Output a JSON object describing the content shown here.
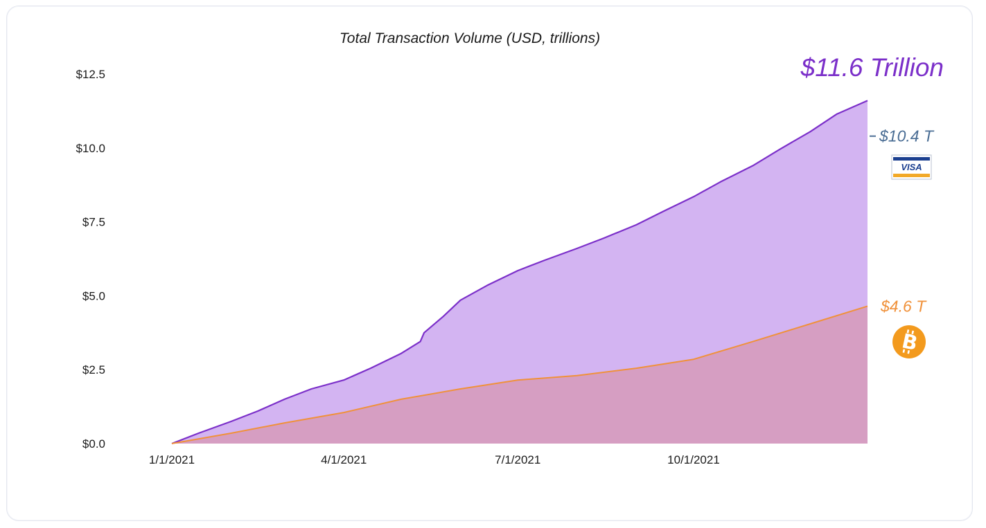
{
  "chart_data": {
    "type": "area",
    "title": "Total Transaction Volume (USD, trillions)",
    "xlabel": "",
    "ylabel": "",
    "ylim": [
      0,
      12.5
    ],
    "y_ticks": [
      "$0.0",
      "$2.5",
      "$5.0",
      "$7.5",
      "$10.0",
      "$12.5"
    ],
    "y_tick_values": [
      0,
      2.5,
      5.0,
      7.5,
      10.0,
      12.5
    ],
    "x_ticks": [
      "1/1/2021",
      "4/1/2021",
      "7/1/2021",
      "10/1/2021"
    ],
    "x_tick_dates": [
      "2021-01-01",
      "2021-04-01",
      "2021-07-01",
      "2021-10-01"
    ],
    "xlim": [
      "2021-01-01",
      "2021-12-31"
    ],
    "grid": false,
    "legend": "none",
    "headline": "$11.6 Trillion",
    "series": [
      {
        "color": "#7b2fc9",
        "fill": "#d3b4f2",
        "end_label": "$11.6 Trillion",
        "points": [
          [
            "2021-01-01",
            0.0
          ],
          [
            "2021-01-15",
            0.35
          ],
          [
            "2021-02-01",
            0.75
          ],
          [
            "2021-02-15",
            1.1
          ],
          [
            "2021-03-01",
            1.5
          ],
          [
            "2021-03-15",
            1.85
          ],
          [
            "2021-04-01",
            2.15
          ],
          [
            "2021-04-15",
            2.55
          ],
          [
            "2021-05-01",
            3.05
          ],
          [
            "2021-05-11",
            3.45
          ],
          [
            "2021-05-13",
            3.75
          ],
          [
            "2021-05-23",
            4.3
          ],
          [
            "2021-06-01",
            4.85
          ],
          [
            "2021-06-15",
            5.35
          ],
          [
            "2021-07-01",
            5.85
          ],
          [
            "2021-07-15",
            6.2
          ],
          [
            "2021-08-01",
            6.6
          ],
          [
            "2021-08-15",
            6.95
          ],
          [
            "2021-09-01",
            7.4
          ],
          [
            "2021-09-15",
            7.85
          ],
          [
            "2021-10-01",
            8.35
          ],
          [
            "2021-10-15",
            8.85
          ],
          [
            "2021-11-01",
            9.4
          ],
          [
            "2021-11-15",
            9.95
          ],
          [
            "2021-12-01",
            10.55
          ],
          [
            "2021-12-15",
            11.15
          ],
          [
            "2021-12-31",
            11.6
          ]
        ]
      },
      {
        "name": "Visa",
        "color": "#4a6d94",
        "end_label": "$10.4 T",
        "reference_value": 10.4,
        "icon": "visa-card-icon"
      },
      {
        "name": "Bitcoin",
        "color": "#f0913a",
        "fill": "#d69ec2",
        "end_label": "$4.6 T",
        "icon": "bitcoin-icon",
        "points": [
          [
            "2021-01-01",
            0.0
          ],
          [
            "2021-02-01",
            0.35
          ],
          [
            "2021-03-01",
            0.7
          ],
          [
            "2021-04-01",
            1.05
          ],
          [
            "2021-05-01",
            1.5
          ],
          [
            "2021-06-01",
            1.85
          ],
          [
            "2021-07-01",
            2.15
          ],
          [
            "2021-08-01",
            2.3
          ],
          [
            "2021-09-01",
            2.55
          ],
          [
            "2021-10-01",
            2.85
          ],
          [
            "2021-11-01",
            3.45
          ],
          [
            "2021-12-01",
            4.05
          ],
          [
            "2021-12-31",
            4.65
          ]
        ]
      }
    ]
  },
  "colors": {
    "headline": "#7b2fc9",
    "visa_label": "#4a6d94",
    "bitcoin_label": "#f0913a",
    "axis_text": "#1a1a1a"
  }
}
